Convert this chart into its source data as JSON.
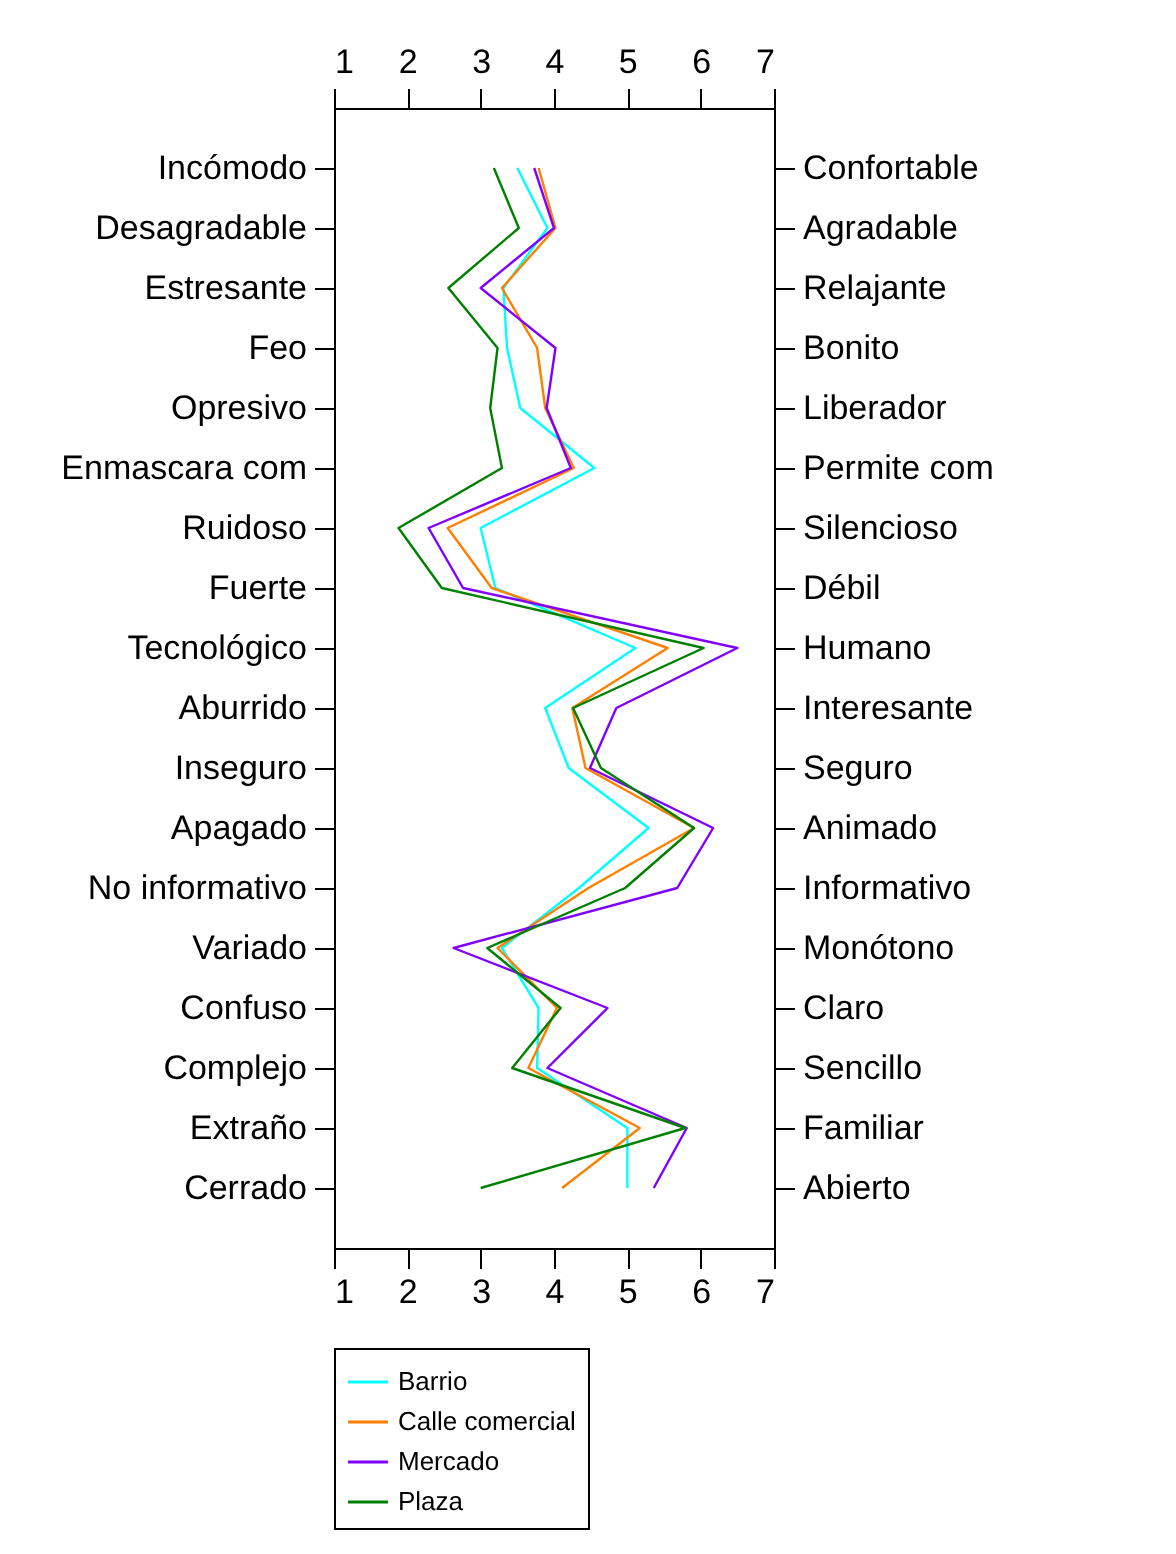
{
  "chart_data": {
    "type": "line",
    "orientation": "horizontal",
    "categories": [
      "Incómodo",
      "Desagradable",
      "Estresante",
      "Feo",
      "Opresivo",
      "Enmascara com",
      "Ruidoso",
      "Fuerte",
      "Tecnológico",
      "Aburrido",
      "Inseguro",
      "Apagado",
      "No informativo",
      "Variado",
      "Confuso",
      "Complejo",
      "Extraño",
      "Cerrado"
    ],
    "y2_categories": [
      "Confortable",
      "Agradable",
      "Relajante",
      "Bonito",
      "Liberador",
      "Permite com",
      "Silencioso",
      "Débil",
      "Humano",
      "Interesante",
      "Seguro",
      "Animado",
      "Informativo",
      "Monótono",
      "Claro",
      "Sencillo",
      "Familiar",
      "Abierto"
    ],
    "xlim": [
      1,
      7
    ],
    "xticks": [
      1,
      2,
      3,
      4,
      5,
      6,
      7
    ],
    "x2lim": [
      1,
      7
    ],
    "x2ticks": [
      1,
      2,
      3,
      4,
      5,
      6,
      7
    ],
    "grid": false,
    "legend": "bottom",
    "marker": "none",
    "line_style": "solid",
    "series": [
      {
        "name": "Barrio",
        "color": "#00ffff",
        "values": [
          3.5,
          3.91,
          3.31,
          3.36,
          3.54,
          4.55,
          3.0,
          3.2,
          5.11,
          3.88,
          4.2,
          5.29,
          4.34,
          3.29,
          3.79,
          3.77,
          5.0,
          5.0
        ]
      },
      {
        "name": "Calle comercial",
        "color": "#ff7f00",
        "values": [
          3.79,
          4.02,
          3.29,
          3.77,
          3.88,
          4.27,
          2.55,
          3.15,
          5.55,
          4.25,
          4.43,
          5.91,
          4.47,
          3.23,
          4.04,
          3.65,
          5.17,
          4.11
        ]
      },
      {
        "name": "Mercado",
        "color": "#8000ff",
        "values": [
          3.73,
          4.0,
          3.0,
          4.02,
          3.9,
          4.23,
          2.29,
          2.76,
          6.5,
          4.85,
          4.49,
          6.17,
          5.68,
          2.63,
          4.73,
          3.91,
          5.81,
          5.36
        ]
      },
      {
        "name": "Plaza",
        "color": "#008000",
        "values": [
          3.18,
          3.52,
          2.56,
          3.23,
          3.13,
          3.29,
          1.88,
          2.47,
          6.04,
          4.26,
          4.64,
          5.91,
          4.97,
          3.09,
          4.09,
          3.43,
          5.79,
          3.0
        ]
      }
    ]
  }
}
